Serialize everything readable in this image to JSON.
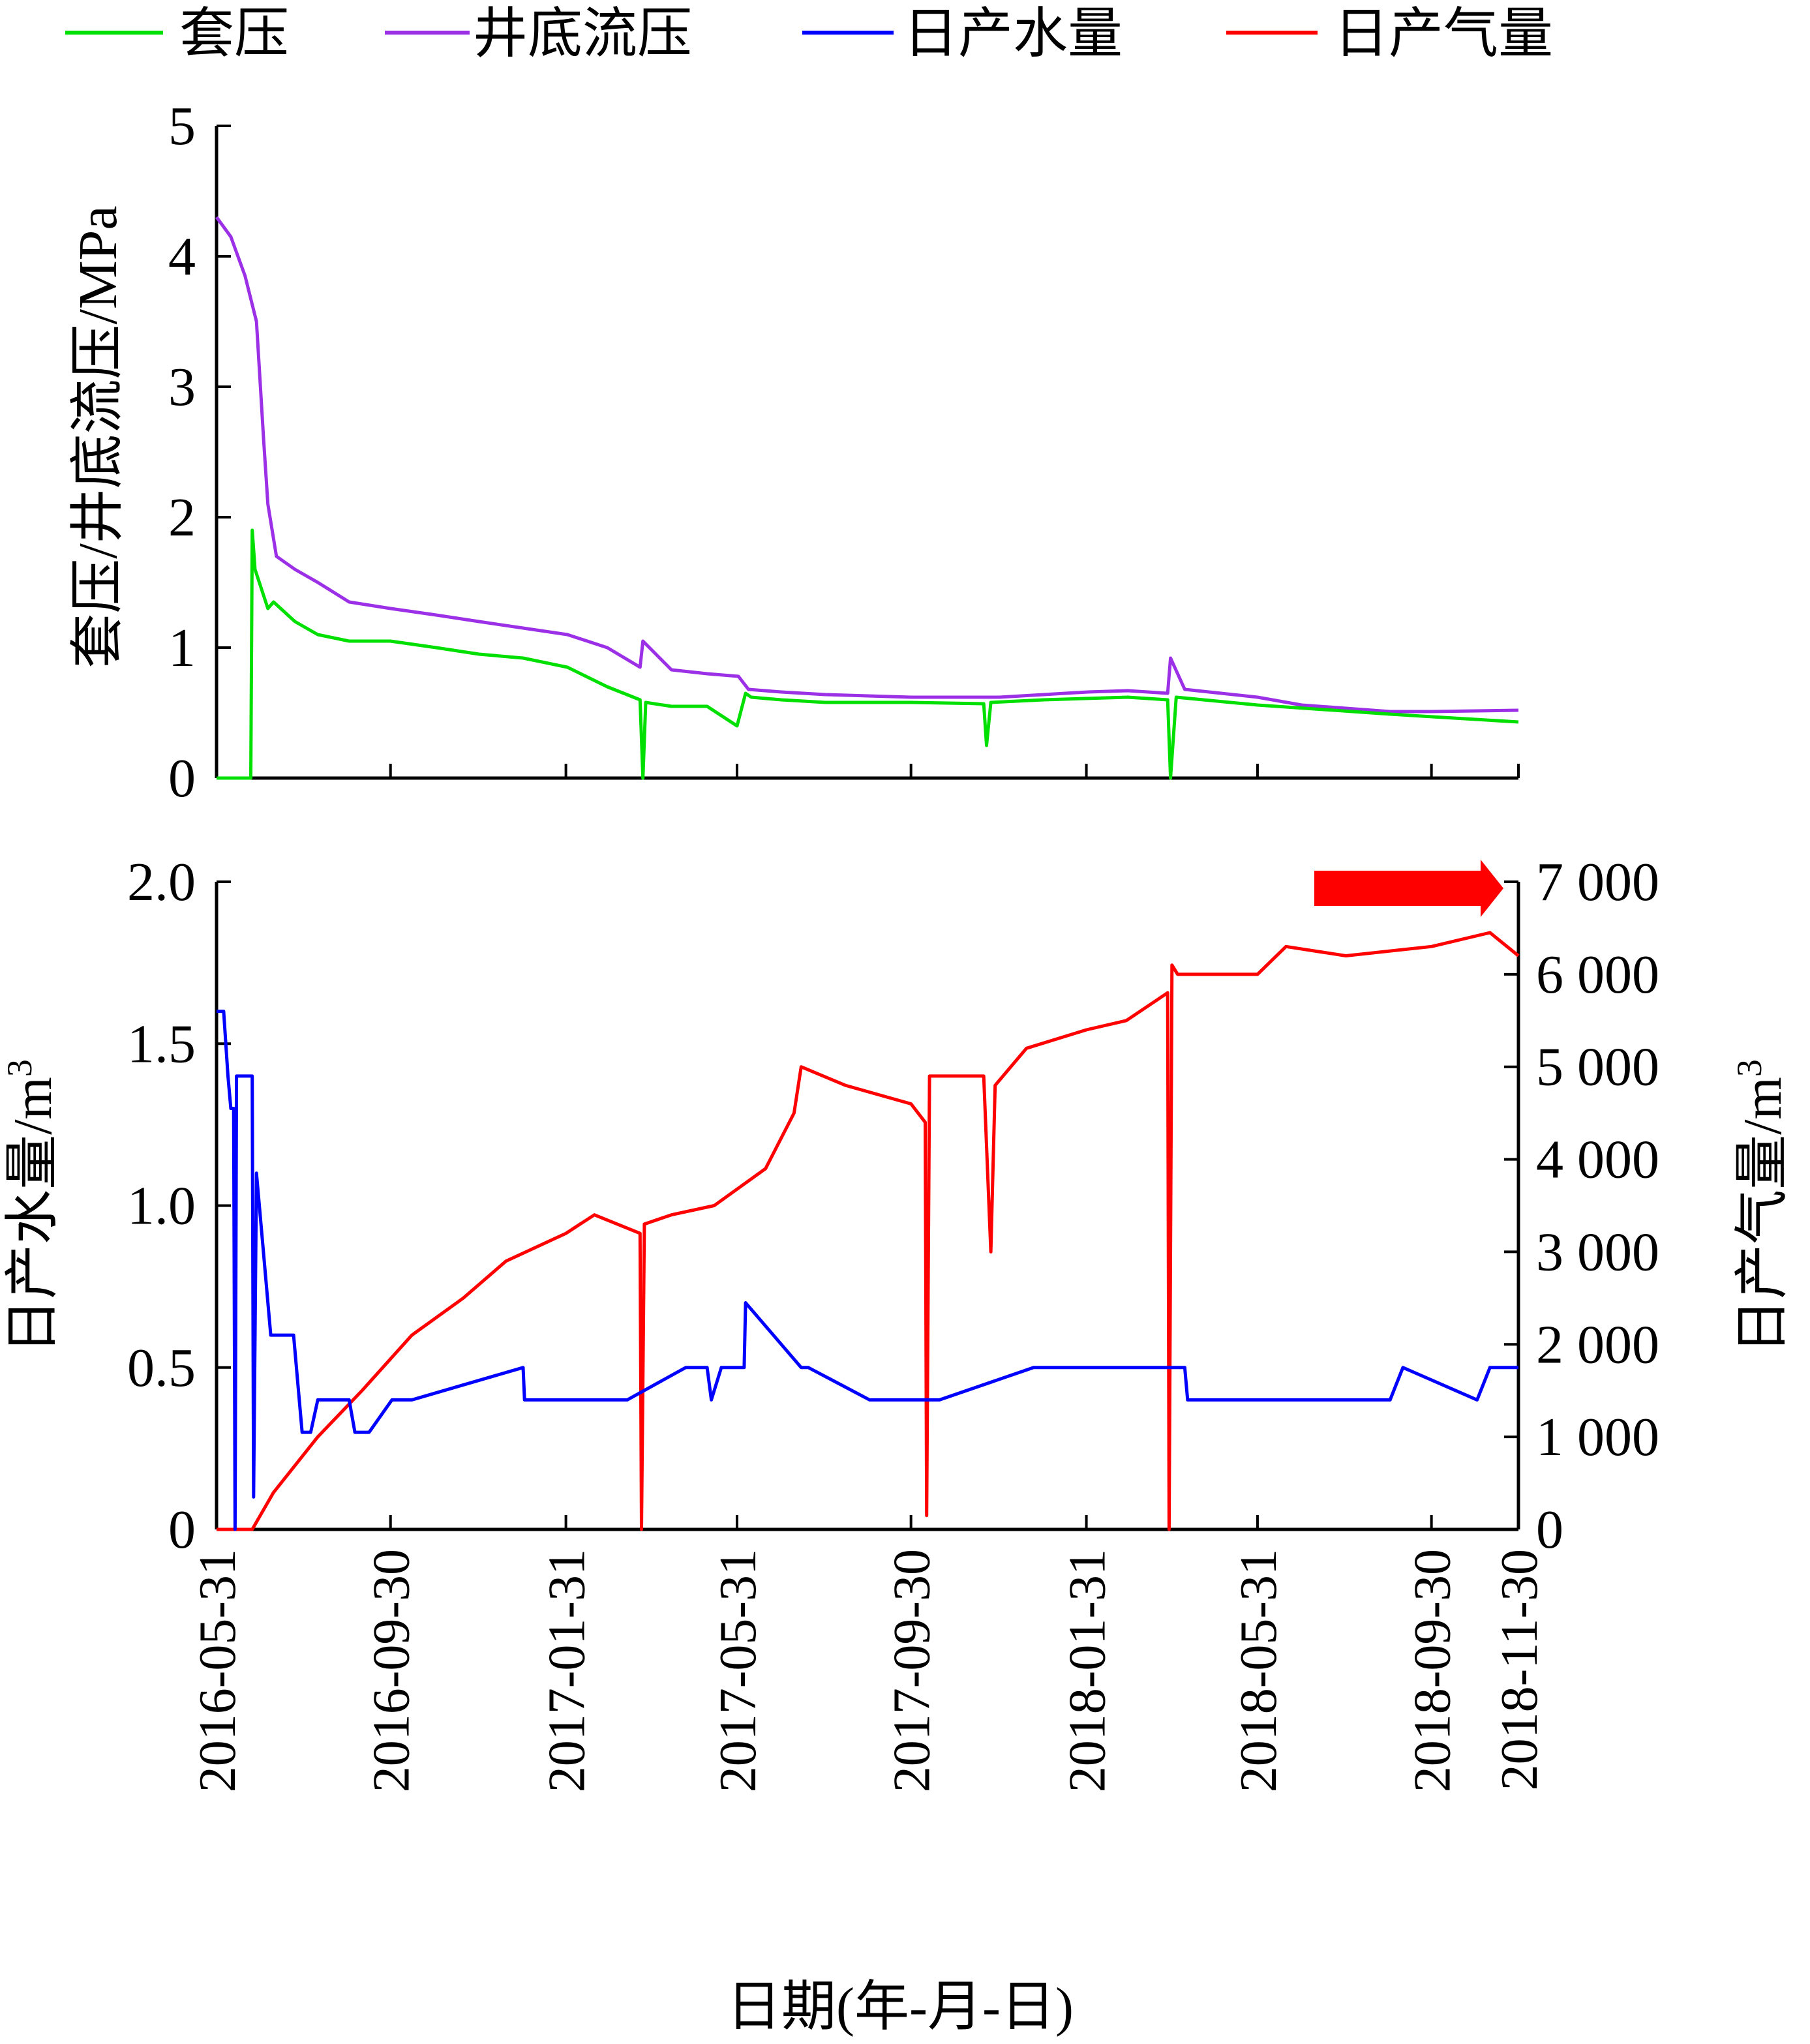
{
  "legend": [
    {
      "label": "套压",
      "color": "#00e000"
    },
    {
      "label": "井底流压",
      "color": "#9b30e6"
    },
    {
      "label": "日产水量",
      "color": "#0000ff"
    },
    {
      "label": "日产气量",
      "color": "#ff0000"
    }
  ],
  "x_axis": {
    "title": "日期(年-月-日)",
    "ticks": [
      "2016-05-31",
      "2016-09-30",
      "2017-01-31",
      "2017-05-31",
      "2017-09-30",
      "2018-01-31",
      "2018-05-31",
      "2018-09-30",
      "2018-11-30"
    ]
  },
  "top_axis_title": "套压/井底流压/MPa",
  "bottom_left_title": "日产水量/m",
  "bottom_left_sup": "3",
  "bottom_right_title": "日产气量/m",
  "bottom_right_sup": "3",
  "annotation_arrow_color": "#ff0000",
  "chart_data": [
    {
      "type": "line",
      "panel": "top",
      "ylim": [
        0,
        5
      ],
      "yticks": [
        "0",
        "1",
        "2",
        "3",
        "4",
        "5"
      ],
      "series": [
        {
          "name": "井底流压",
          "color": "#9b30e6",
          "x": [
            "2016-05-31",
            "2016-06-10",
            "2016-06-20",
            "2016-06-28",
            "2016-07-03",
            "2016-07-06",
            "2016-07-12",
            "2016-07-25",
            "2016-08-10",
            "2016-09-01",
            "2016-09-30",
            "2016-11-01",
            "2016-12-01",
            "2017-01-01",
            "2017-02-01",
            "2017-03-01",
            "2017-03-24",
            "2017-03-26",
            "2017-04-15",
            "2017-05-10",
            "2017-06-01",
            "2017-06-08",
            "2017-07-01",
            "2017-08-01",
            "2017-09-30",
            "2017-12-01",
            "2018-01-01",
            "2018-02-01",
            "2018-03-01",
            "2018-03-29",
            "2018-03-31",
            "2018-04-10",
            "2018-05-31",
            "2018-07-01",
            "2018-09-01",
            "2018-09-30",
            "2018-11-30"
          ],
          "values": [
            4.3,
            4.15,
            3.85,
            3.5,
            2.6,
            2.1,
            1.7,
            1.6,
            1.5,
            1.35,
            1.3,
            1.25,
            1.2,
            1.15,
            1.1,
            1.0,
            0.85,
            1.05,
            0.83,
            0.8,
            0.78,
            0.68,
            0.66,
            0.64,
            0.62,
            0.62,
            0.64,
            0.66,
            0.67,
            0.65,
            0.92,
            0.68,
            0.62,
            0.56,
            0.51,
            0.51,
            0.52
          ]
        },
        {
          "name": "套压",
          "color": "#00e000",
          "x": [
            "2016-05-31",
            "2016-06-24",
            "2016-06-25",
            "2016-06-27",
            "2016-07-06",
            "2016-07-10",
            "2016-07-25",
            "2016-08-10",
            "2016-09-01",
            "2016-09-30",
            "2016-11-01",
            "2016-12-01",
            "2017-01-01",
            "2017-02-01",
            "2017-03-01",
            "2017-03-24",
            "2017-03-26",
            "2017-03-28",
            "2017-04-15",
            "2017-05-10",
            "2017-05-31",
            "2017-06-06",
            "2017-06-10",
            "2017-07-01",
            "2017-08-01",
            "2017-09-30",
            "2017-11-20",
            "2017-11-22",
            "2017-11-25",
            "2018-01-01",
            "2018-03-01",
            "2018-03-29",
            "2018-03-31",
            "2018-04-04",
            "2018-05-31",
            "2018-09-01",
            "2018-11-30"
          ],
          "values": [
            0,
            0,
            1.9,
            1.6,
            1.3,
            1.35,
            1.2,
            1.1,
            1.05,
            1.05,
            1.0,
            0.95,
            0.92,
            0.85,
            0.7,
            0.6,
            0.0,
            0.58,
            0.55,
            0.55,
            0.4,
            0.65,
            0.62,
            0.6,
            0.58,
            0.58,
            0.57,
            0.25,
            0.58,
            0.6,
            0.62,
            0.6,
            0.0,
            0.62,
            0.56,
            0.49,
            0.43
          ]
        }
      ]
    },
    {
      "type": "line",
      "panel": "bottom",
      "ylim": [
        0,
        2.0
      ],
      "yticks": [
        "0",
        "0.5",
        "1.0",
        "1.5",
        "2.0"
      ],
      "y2lim": [
        0,
        7000
      ],
      "y2ticks": [
        "0",
        "1 000",
        "2 000",
        "3 000",
        "4 000",
        "5 000",
        "6 000",
        "7 000"
      ],
      "series": [
        {
          "name": "日产水量",
          "axis": "left",
          "color": "#0000ff",
          "x": [
            "2016-05-31",
            "2016-06-05",
            "2016-06-08",
            "2016-06-10",
            "2016-06-12",
            "2016-06-13",
            "2016-06-14",
            "2016-06-16",
            "2016-06-18",
            "2016-06-25",
            "2016-06-26",
            "2016-06-28",
            "2016-07-02",
            "2016-07-08",
            "2016-07-24",
            "2016-07-30",
            "2016-08-05",
            "2016-08-10",
            "2016-09-01",
            "2016-09-05",
            "2016-09-15",
            "2016-10-01",
            "2016-10-15",
            "2017-01-01",
            "2017-01-02",
            "2017-03-15",
            "2017-04-25",
            "2017-04-28",
            "2017-05-10",
            "2017-05-13",
            "2017-05-20",
            "2017-06-05",
            "2017-06-06",
            "2017-07-15",
            "2017-07-20",
            "2017-09-01",
            "2017-10-20",
            "2017-12-25",
            "2018-01-01",
            "2018-03-01",
            "2018-04-10",
            "2018-04-12",
            "2018-09-01",
            "2018-09-10",
            "2018-11-01",
            "2018-11-10",
            "2018-11-30"
          ],
          "values": [
            1.6,
            1.6,
            1.4,
            1.3,
            1.3,
            0.0,
            1.4,
            1.4,
            1.4,
            1.4,
            0.1,
            1.1,
            0.9,
            0.6,
            0.6,
            0.3,
            0.3,
            0.4,
            0.4,
            0.3,
            0.3,
            0.4,
            0.4,
            0.5,
            0.4,
            0.4,
            0.5,
            0.5,
            0.5,
            0.4,
            0.5,
            0.5,
            0.7,
            0.5,
            0.5,
            0.4,
            0.4,
            0.5,
            0.5,
            0.5,
            0.5,
            0.4,
            0.4,
            0.5,
            0.4,
            0.5,
            0.5
          ]
        },
        {
          "name": "日产气量",
          "axis": "right",
          "color": "#ff0000",
          "x": [
            "2016-05-31",
            "2016-06-25",
            "2016-07-10",
            "2016-08-10",
            "2016-09-10",
            "2016-10-15",
            "2016-11-20",
            "2016-12-20",
            "2017-01-31",
            "2017-02-20",
            "2017-03-24",
            "2017-03-25",
            "2017-03-27",
            "2017-04-15",
            "2017-05-15",
            "2017-06-20",
            "2017-07-10",
            "2017-07-15",
            "2017-08-15",
            "2017-09-30",
            "2017-10-10",
            "2017-10-11",
            "2017-10-13",
            "2017-11-20",
            "2017-11-25",
            "2017-11-28",
            "2017-12-20",
            "2018-01-31",
            "2018-02-28",
            "2018-03-29",
            "2018-03-30",
            "2018-04-01",
            "2018-04-05",
            "2018-05-31",
            "2018-06-20",
            "2018-08-01",
            "2018-09-30",
            "2018-11-10",
            "2018-11-30"
          ],
          "values": [
            0,
            0,
            400,
            1000,
            1500,
            2100,
            2500,
            2900,
            3200,
            3400,
            3200,
            0,
            3300,
            3400,
            3500,
            3900,
            4500,
            5000,
            4800,
            4600,
            4400,
            150,
            4900,
            4900,
            3000,
            4800,
            5200,
            5400,
            5500,
            5800,
            0,
            6100,
            6000,
            6000,
            6300,
            6200,
            6300,
            6450,
            6200
          ]
        }
      ]
    }
  ]
}
